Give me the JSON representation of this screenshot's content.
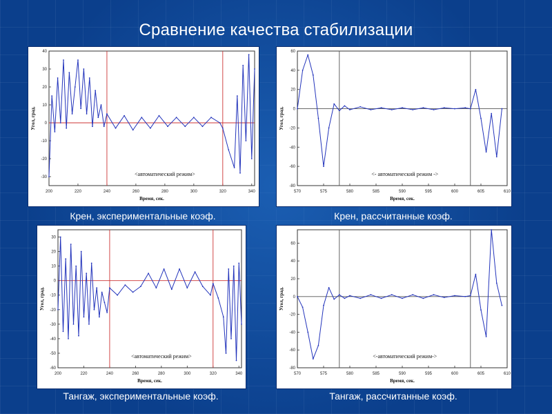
{
  "slide": {
    "title": "Сравнение качества стабилизации"
  },
  "panels": [
    {
      "caption": "Крен, экспериментальные коэф.",
      "xlabel": "Время, сек.",
      "ylabel": "Угол, град.",
      "annotation": "<автоматический режим>",
      "chart_data": {
        "type": "line",
        "x_ticks": [
          "200",
          "220",
          "240",
          "260",
          "280",
          "300",
          "320",
          "340"
        ],
        "y_ticks": [
          "40",
          "30",
          "20",
          "10",
          "0",
          "-10",
          "-20",
          "-30"
        ],
        "xlim": [
          200,
          342
        ],
        "ylim": [
          -35,
          40
        ],
        "vlines": [
          240,
          320
        ],
        "hline": 0,
        "x": [
          200,
          202,
          204,
          206,
          208,
          210,
          212,
          214,
          216,
          218,
          220,
          222,
          224,
          226,
          228,
          230,
          232,
          234,
          236,
          238,
          240,
          246,
          252,
          258,
          264,
          270,
          276,
          282,
          288,
          294,
          300,
          306,
          312,
          318,
          320,
          324,
          328,
          330,
          332,
          334,
          336,
          338,
          340,
          342
        ],
        "y": [
          -30,
          15,
          -5,
          25,
          0,
          35,
          -3,
          28,
          5,
          20,
          35,
          8,
          30,
          5,
          25,
          -2,
          18,
          3,
          10,
          -2,
          5,
          -3,
          4,
          -4,
          3,
          -3,
          4,
          -2,
          3,
          -2,
          3,
          -2,
          3,
          0,
          -3,
          -15,
          -25,
          15,
          -28,
          32,
          -10,
          38,
          -20,
          30
        ]
      },
      "line_color": "#2233bb",
      "ref_color": "#cc3333"
    },
    {
      "caption": "Крен, рассчитанные коэф.",
      "xlabel": "Время, сек.",
      "ylabel": "Угол, град.",
      "annotation": "<- автоматический режим ->",
      "chart_data": {
        "type": "line",
        "x_ticks": [
          "570",
          "575",
          "580",
          "585",
          "590",
          "595",
          "600",
          "605",
          "610"
        ],
        "y_ticks": [
          "60",
          "40",
          "20",
          "0",
          "-20",
          "-40",
          "-60",
          "-80"
        ],
        "xlim": [
          570,
          610
        ],
        "ylim": [
          -80,
          60
        ],
        "vlines": [
          578,
          603
        ],
        "hline": 0,
        "x": [
          570,
          571,
          572,
          573,
          574,
          575,
          576,
          577,
          578,
          579,
          580,
          582,
          584,
          586,
          588,
          590,
          592,
          594,
          596,
          598,
          600,
          602,
          603,
          604,
          605,
          606,
          607,
          608,
          609
        ],
        "y": [
          0,
          40,
          56,
          35,
          -10,
          -60,
          -20,
          5,
          -2,
          3,
          -1,
          2,
          -1,
          1,
          -1,
          1,
          -1,
          1,
          -1,
          1,
          0,
          1,
          0,
          20,
          -10,
          -45,
          -5,
          -50,
          0
        ]
      },
      "line_color": "#2233bb",
      "ref_color": "#555555"
    },
    {
      "caption": "Тангаж, экспериментальные коэф.",
      "xlabel": "Время, сек.",
      "ylabel": "Угол, град.",
      "annotation": "<автоматический режим>",
      "chart_data": {
        "type": "line",
        "x_ticks": [
          "200",
          "220",
          "240",
          "260",
          "280",
          "300",
          "320",
          "340"
        ],
        "y_ticks": [
          "30",
          "20",
          "10",
          "0",
          "-10",
          "-20",
          "-30",
          "-40",
          "-50",
          "-60"
        ],
        "xlim": [
          200,
          342
        ],
        "ylim": [
          -60,
          35
        ],
        "vlines": [
          240,
          320
        ],
        "hline": 0,
        "x": [
          200,
          202,
          204,
          206,
          208,
          210,
          212,
          214,
          216,
          218,
          220,
          222,
          224,
          226,
          228,
          230,
          232,
          234,
          236,
          238,
          240,
          246,
          252,
          258,
          264,
          270,
          276,
          282,
          288,
          294,
          300,
          306,
          312,
          318,
          320,
          324,
          328,
          330,
          332,
          334,
          336,
          338,
          340,
          342
        ],
        "y": [
          -20,
          30,
          -35,
          15,
          -40,
          25,
          -30,
          10,
          -38,
          20,
          -25,
          5,
          -30,
          12,
          -20,
          -5,
          -25,
          -8,
          -15,
          -22,
          -5,
          -10,
          -3,
          -8,
          -4,
          5,
          -5,
          8,
          -6,
          8,
          -5,
          6,
          -4,
          -10,
          -2,
          -12,
          -25,
          -50,
          8,
          -40,
          10,
          -55,
          12,
          -30
        ]
      },
      "line_color": "#2233bb",
      "ref_color": "#cc3333"
    },
    {
      "caption": "Тангаж, рассчитанные коэф.",
      "xlabel": "Время, сек.",
      "ylabel": "Угол, град.",
      "annotation": "<-автоматический режим->",
      "chart_data": {
        "type": "line",
        "x_ticks": [
          "570",
          "575",
          "580",
          "585",
          "590",
          "595",
          "600",
          "605",
          "610"
        ],
        "y_ticks": [
          "60",
          "40",
          "20",
          "0",
          "-20",
          "-40",
          "-60",
          "-80"
        ],
        "xlim": [
          570,
          610
        ],
        "ylim": [
          -80,
          75
        ],
        "vlines": [
          578,
          603
        ],
        "hline": 0,
        "x": [
          570,
          571,
          572,
          573,
          574,
          575,
          576,
          577,
          578,
          579,
          580,
          582,
          584,
          586,
          588,
          590,
          592,
          594,
          596,
          598,
          600,
          602,
          603,
          604,
          605,
          606,
          607,
          608,
          609
        ],
        "y": [
          0,
          -12,
          -40,
          -70,
          -55,
          -10,
          10,
          -3,
          2,
          -2,
          1,
          -2,
          2,
          -2,
          2,
          -2,
          2,
          -2,
          2,
          -1,
          1,
          0,
          1,
          25,
          -15,
          -45,
          75,
          15,
          -10
        ]
      },
      "line_color": "#2233bb",
      "ref_color": "#555555"
    }
  ]
}
